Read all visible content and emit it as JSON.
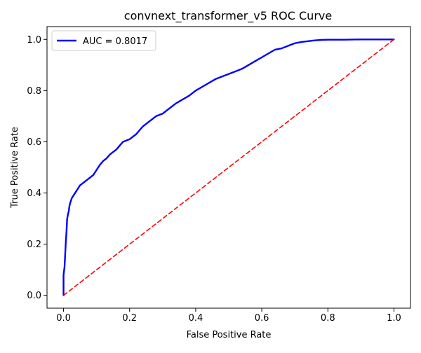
{
  "chart_data": {
    "type": "line",
    "title": "convnext_transformer_v5 ROC Curve",
    "xlabel": "False Positive Rate",
    "ylabel": "True Positive Rate",
    "xlim": [
      -0.05,
      1.05
    ],
    "ylim": [
      -0.05,
      1.05
    ],
    "xticks": [
      0.0,
      0.2,
      0.4,
      0.6,
      0.8,
      1.0
    ],
    "xtick_labels": [
      "0.0",
      "0.2",
      "0.4",
      "0.6",
      "0.8",
      "1.0"
    ],
    "yticks": [
      0.0,
      0.2,
      0.4,
      0.6,
      0.8,
      1.0
    ],
    "ytick_labels": [
      "0.0",
      "0.2",
      "0.4",
      "0.6",
      "0.8",
      "1.0"
    ],
    "grid": false,
    "legend": {
      "placement": "top-left",
      "entries": [
        "AUC = 0.8017"
      ]
    },
    "series": [
      {
        "name": "AUC = 0.8017",
        "style": "solid",
        "color": "#0000ff",
        "x": [
          0.0,
          0.0,
          0.003,
          0.005,
          0.007,
          0.009,
          0.011,
          0.014,
          0.016,
          0.018,
          0.02,
          0.025,
          0.03,
          0.035,
          0.04,
          0.05,
          0.06,
          0.07,
          0.08,
          0.09,
          0.1,
          0.11,
          0.12,
          0.13,
          0.14,
          0.15,
          0.16,
          0.17,
          0.18,
          0.2,
          0.22,
          0.24,
          0.26,
          0.27,
          0.28,
          0.3,
          0.32,
          0.34,
          0.36,
          0.38,
          0.4,
          0.42,
          0.44,
          0.46,
          0.48,
          0.5,
          0.52,
          0.54,
          0.56,
          0.58,
          0.6,
          0.62,
          0.64,
          0.66,
          0.68,
          0.7,
          0.72,
          0.74,
          0.76,
          0.78,
          0.8,
          0.85,
          0.9,
          0.95,
          1.0
        ],
        "y": [
          0.0,
          0.08,
          0.11,
          0.16,
          0.21,
          0.25,
          0.3,
          0.32,
          0.33,
          0.35,
          0.36,
          0.38,
          0.39,
          0.4,
          0.41,
          0.43,
          0.44,
          0.45,
          0.46,
          0.47,
          0.49,
          0.51,
          0.525,
          0.535,
          0.55,
          0.56,
          0.57,
          0.585,
          0.6,
          0.61,
          0.63,
          0.66,
          0.68,
          0.69,
          0.7,
          0.71,
          0.73,
          0.75,
          0.765,
          0.78,
          0.8,
          0.815,
          0.83,
          0.845,
          0.855,
          0.865,
          0.875,
          0.885,
          0.9,
          0.915,
          0.93,
          0.945,
          0.96,
          0.965,
          0.975,
          0.985,
          0.99,
          0.993,
          0.996,
          0.998,
          0.999,
          0.999,
          1.0,
          1.0,
          1.0
        ]
      },
      {
        "style": "dashed",
        "color": "#ff0000",
        "x": [
          0.0,
          1.0
        ],
        "y": [
          0.0,
          1.0
        ]
      }
    ]
  }
}
